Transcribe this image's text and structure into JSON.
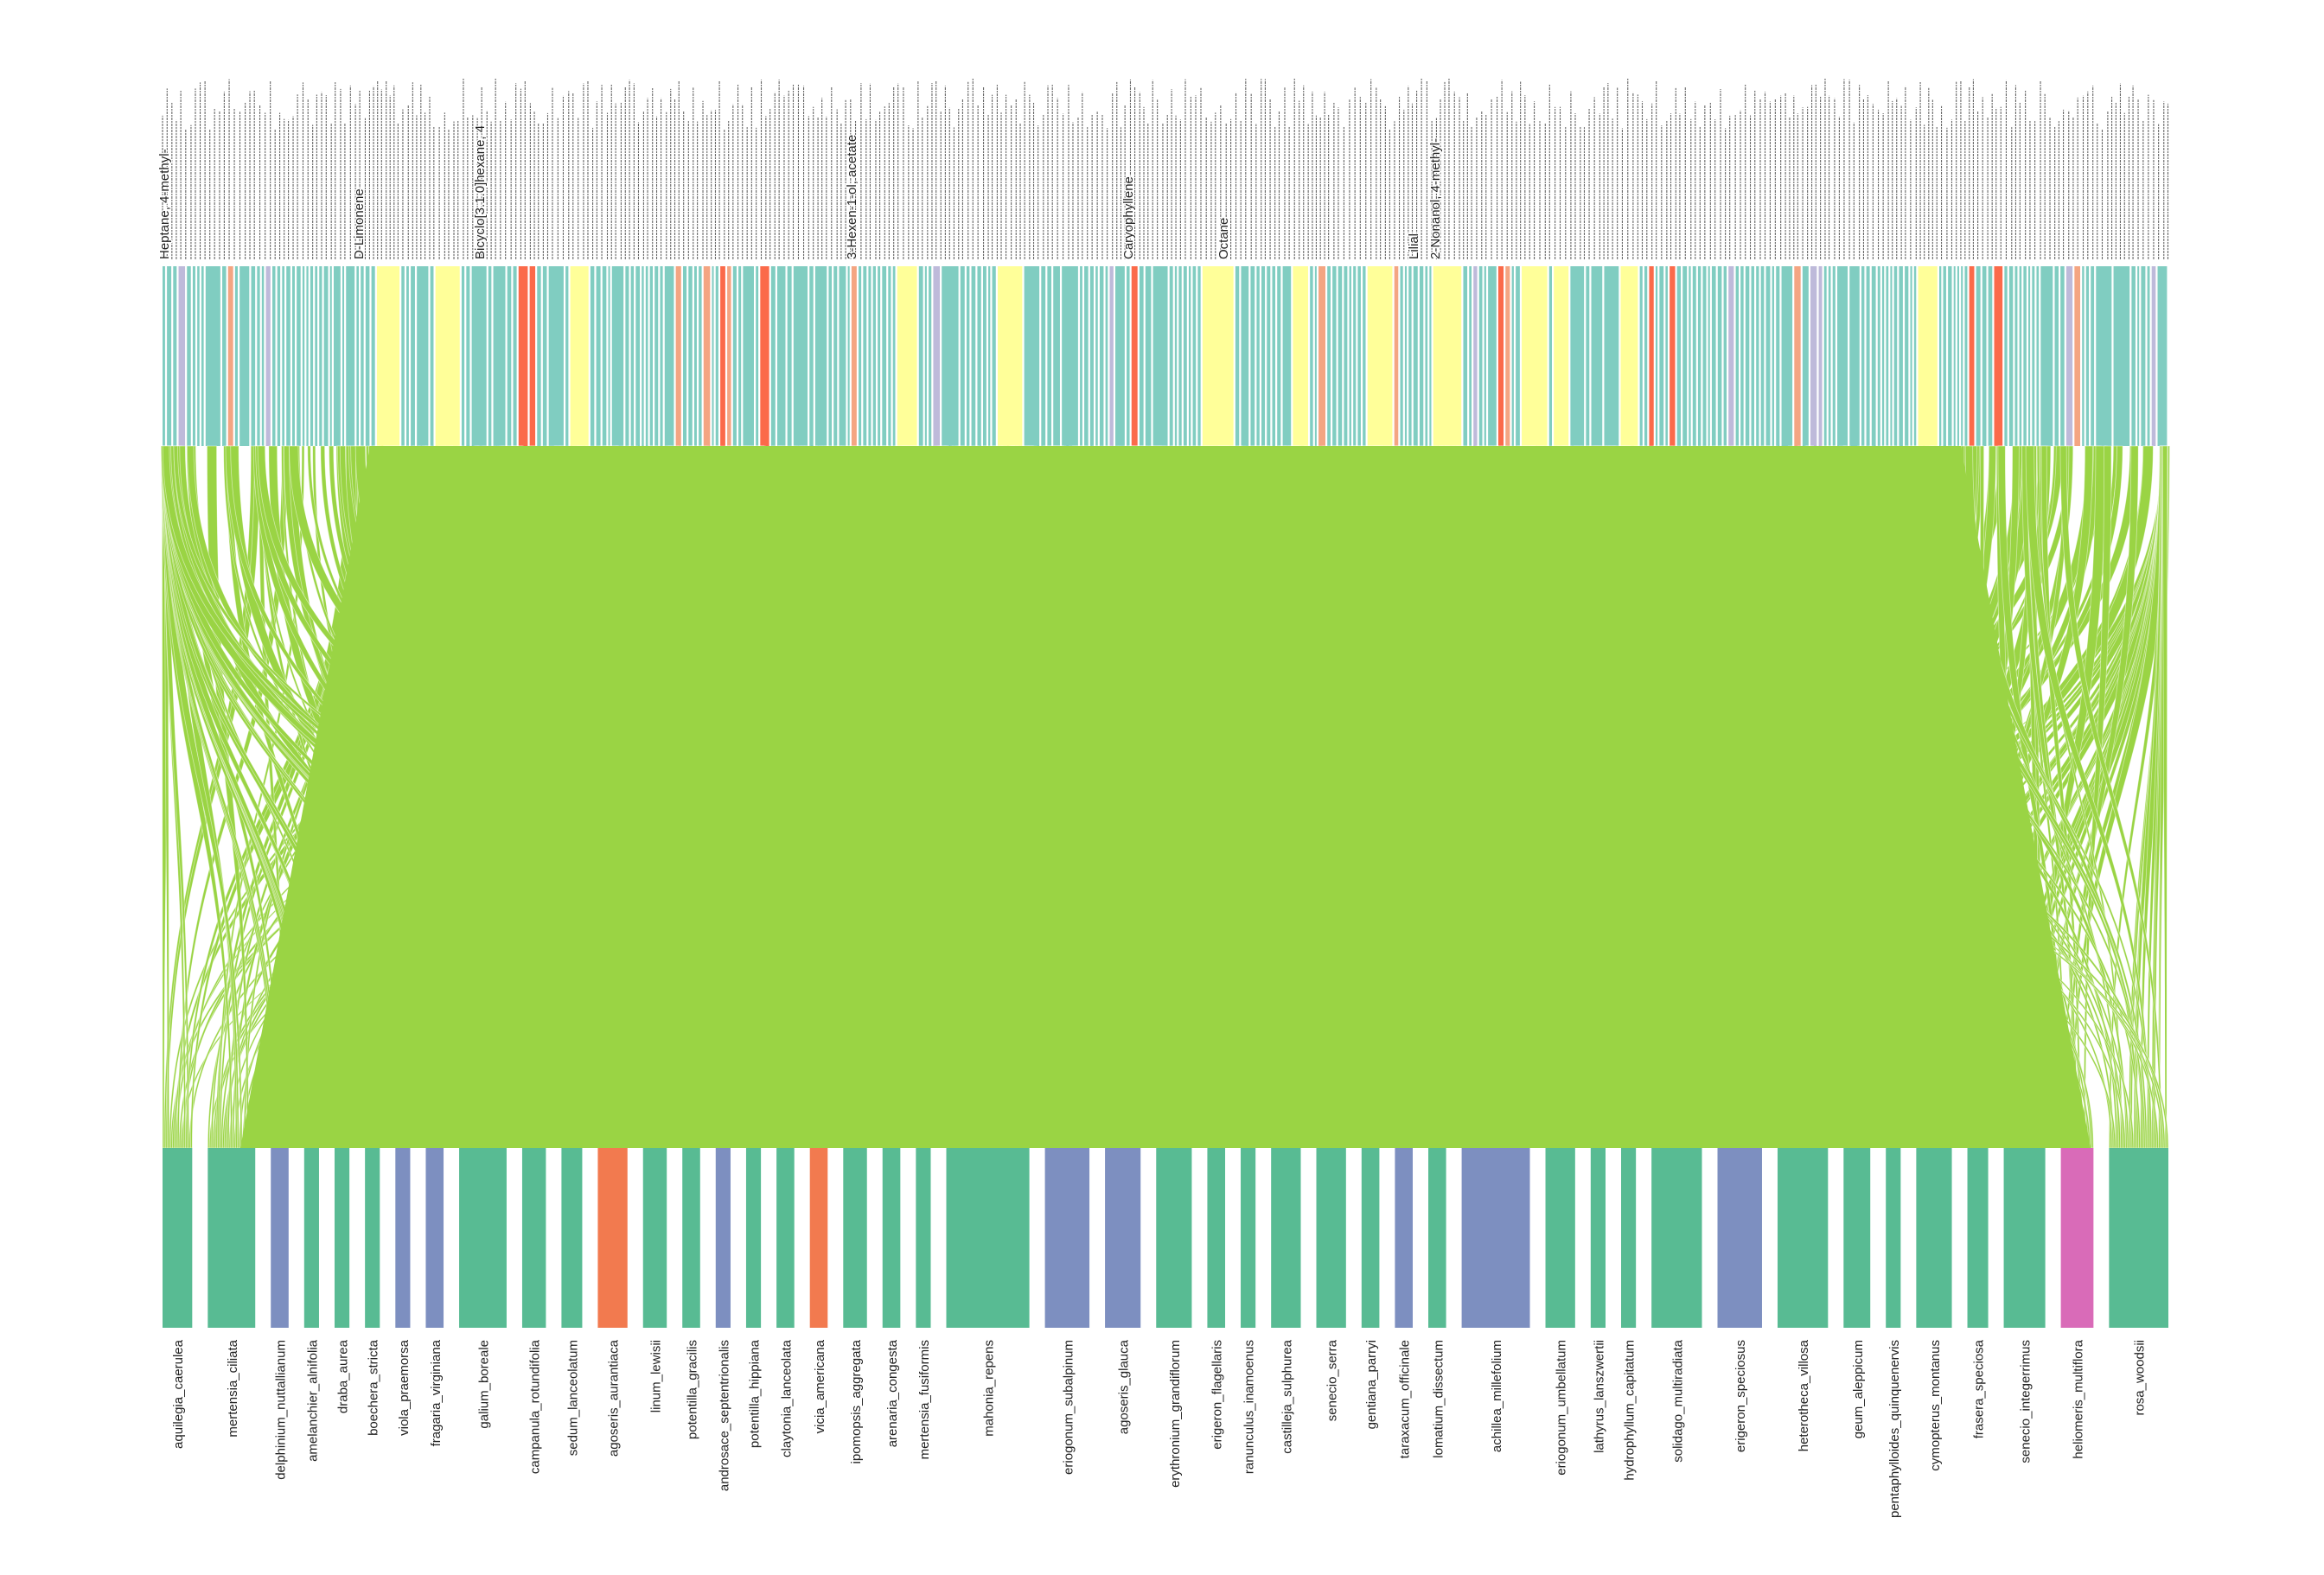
{
  "chart_data": {
    "type": "bipartite",
    "title": "",
    "link_color": "#9ad444",
    "link_opacity": 0.9,
    "top_level": {
      "label_note": "compound names rotated vertically; mostly illegible in source",
      "legible_labels": [
        "D-Limonene",
        "3-Hexen-1-ol, acetate",
        "Heptane, 4-methyl-",
        "Bicyclo[3.1.0]hexane, 4",
        "2-Nonanol, 4-methyl-",
        "Caryophyllene",
        "Lilial",
        "Octane"
      ],
      "palette": [
        "#80cdc1",
        "#ffff99",
        "#fb6a4a",
        "#f4a582",
        "#bebada",
        "#8dd3c7"
      ]
    },
    "bottom_level": {
      "species": [
        {
          "name": "aquilegia_caerulea",
          "color": "#58bb93",
          "weight": 1.0
        },
        {
          "name": "mertensia_ciliata",
          "color": "#58bb93",
          "weight": 1.6
        },
        {
          "name": "delphinium_nuttallianum",
          "color": "#7d8fc0",
          "weight": 0.6
        },
        {
          "name": "amelanchier_alnifolia",
          "color": "#58bb93",
          "weight": 0.5
        },
        {
          "name": "draba_aurea",
          "color": "#58bb93",
          "weight": 0.5
        },
        {
          "name": "boechera_stricta",
          "color": "#58bb93",
          "weight": 0.5
        },
        {
          "name": "viola_praemorsa",
          "color": "#7d8fc0",
          "weight": 0.5
        },
        {
          "name": "fragaria_virginiana",
          "color": "#7d8fc0",
          "weight": 0.6
        },
        {
          "name": "galium_boreale",
          "color": "#58bb93",
          "weight": 1.6
        },
        {
          "name": "campanula_rotundifolia",
          "color": "#58bb93",
          "weight": 0.8
        },
        {
          "name": "sedum_lanceolatum",
          "color": "#58bb93",
          "weight": 0.7
        },
        {
          "name": "agoseris_aurantiaca",
          "color": "#f27a4f",
          "weight": 1.0
        },
        {
          "name": "linum_lewisii",
          "color": "#58bb93",
          "weight": 0.8
        },
        {
          "name": "potentilla_gracilis",
          "color": "#58bb93",
          "weight": 0.6
        },
        {
          "name": "androsace_septentrionalis",
          "color": "#7d8fc0",
          "weight": 0.5
        },
        {
          "name": "potentilla_hippiana",
          "color": "#58bb93",
          "weight": 0.5
        },
        {
          "name": "claytonia_lanceolata",
          "color": "#58bb93",
          "weight": 0.6
        },
        {
          "name": "vicia_americana",
          "color": "#f27a4f",
          "weight": 0.6
        },
        {
          "name": "ipomopsis_aggregata",
          "color": "#58bb93",
          "weight": 0.8
        },
        {
          "name": "arenaria_congesta",
          "color": "#58bb93",
          "weight": 0.6
        },
        {
          "name": "mertensia_fusiformis",
          "color": "#58bb93",
          "weight": 0.5
        },
        {
          "name": "mahonia_repens",
          "color": "#58bb93",
          "weight": 2.8
        },
        {
          "name": "eriogonum_subalpinum",
          "color": "#7d8fc0",
          "weight": 1.5
        },
        {
          "name": "agoseris_glauca",
          "color": "#7d8fc0",
          "weight": 1.2
        },
        {
          "name": "erythronium_grandiflorum",
          "color": "#58bb93",
          "weight": 1.2
        },
        {
          "name": "erigeron_flagellaris",
          "color": "#58bb93",
          "weight": 0.6
        },
        {
          "name": "ranunculus_inamoenus",
          "color": "#58bb93",
          "weight": 0.5
        },
        {
          "name": "castilleja_sulphurea",
          "color": "#58bb93",
          "weight": 1.0
        },
        {
          "name": "senecio_serra",
          "color": "#58bb93",
          "weight": 1.0
        },
        {
          "name": "gentiana_parryi",
          "color": "#58bb93",
          "weight": 0.6
        },
        {
          "name": "taraxacum_officinale",
          "color": "#7d8fc0",
          "weight": 0.6
        },
        {
          "name": "lomatium_dissectum",
          "color": "#58bb93",
          "weight": 0.6
        },
        {
          "name": "achillea_millefolium",
          "color": "#7d8fc0",
          "weight": 2.3
        },
        {
          "name": "eriogonum_umbellatum",
          "color": "#58bb93",
          "weight": 1.0
        },
        {
          "name": "lathyrus_lanszwertii",
          "color": "#58bb93",
          "weight": 0.5
        },
        {
          "name": "hydrophyllum_capitatum",
          "color": "#58bb93",
          "weight": 0.5
        },
        {
          "name": "solidago_multiradiata",
          "color": "#58bb93",
          "weight": 1.7
        },
        {
          "name": "erigeron_speciosus",
          "color": "#7d8fc0",
          "weight": 1.5
        },
        {
          "name": "heterotheca_villosa",
          "color": "#58bb93",
          "weight": 1.7
        },
        {
          "name": "geum_aleppicum",
          "color": "#58bb93",
          "weight": 0.9
        },
        {
          "name": "pentaphylloides_quinquenervis",
          "color": "#58bb93",
          "weight": 0.5
        },
        {
          "name": "cymopterus_montanus",
          "color": "#58bb93",
          "weight": 1.2
        },
        {
          "name": "frasera_speciosa",
          "color": "#58bb93",
          "weight": 0.7
        },
        {
          "name": "senecio_integerrimus",
          "color": "#58bb93",
          "weight": 1.4
        },
        {
          "name": "heliomeris_multiflora",
          "color": "#d96bb8",
          "weight": 1.1
        },
        {
          "name": "rosa_woodsii",
          "color": "#58bb93",
          "weight": 2.0
        }
      ]
    }
  }
}
